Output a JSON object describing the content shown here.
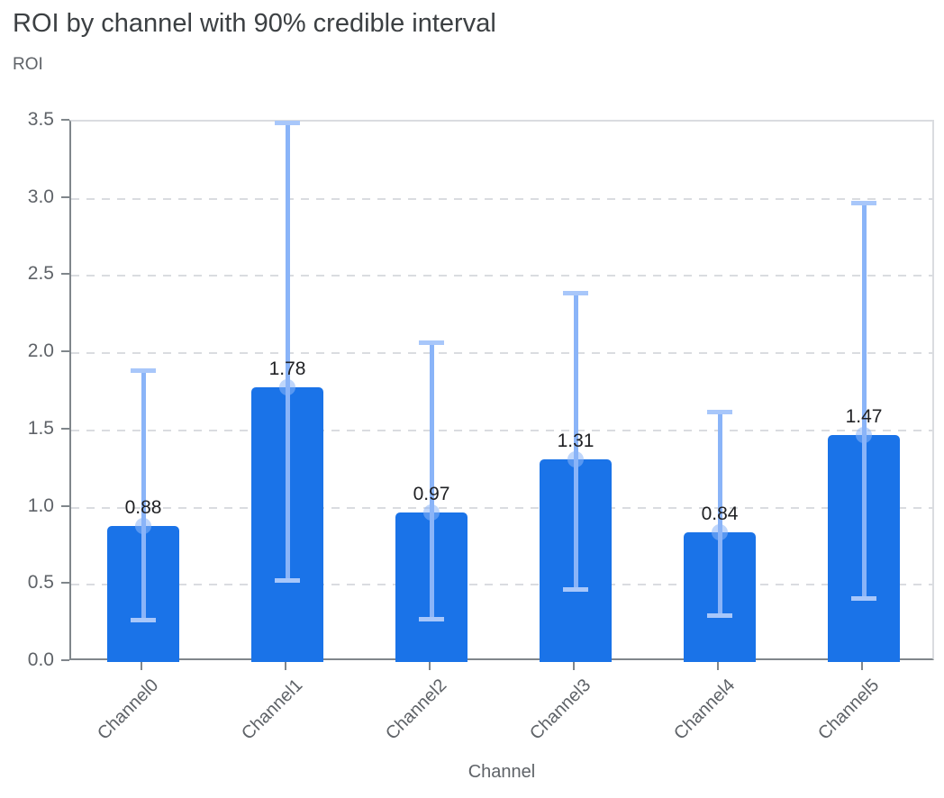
{
  "page": {
    "background_color": "#ffffff"
  },
  "chart_data": {
    "type": "bar",
    "title": "ROI by channel with 90% credible interval",
    "xlabel": "Channel",
    "ylabel": "ROI",
    "categories": [
      "Channel0",
      "Channel1",
      "Channel2",
      "Channel3",
      "Channel4",
      "Channel5"
    ],
    "series": [
      {
        "name": "ROI",
        "values": [
          0.88,
          1.78,
          0.97,
          1.31,
          0.84,
          1.47
        ],
        "value_labels": [
          "0.88",
          "1.78",
          "0.97",
          "1.31",
          "0.84",
          "1.47"
        ],
        "credible_interval_low": [
          0.27,
          0.53,
          0.28,
          0.47,
          0.3,
          0.41
        ],
        "credible_interval_high": [
          1.89,
          3.49,
          2.07,
          2.39,
          1.62,
          2.97
        ],
        "interval_label": "90% credible interval"
      }
    ],
    "ylim": [
      0,
      3.5
    ],
    "ytick_labels": [
      "0.0",
      "0.5",
      "1.0",
      "1.5",
      "2.0",
      "2.5",
      "3.0",
      "3.5"
    ],
    "grid": "horizontal-dashed",
    "legend": "none",
    "colors": {
      "bar": "#1a73e8",
      "error_bar": "#8ab4f8",
      "error_cap": "#a8c7fa",
      "error_dot": "rgba(138,180,248,0.55)",
      "gridline": "#dadce0",
      "axis_line": "#80868b",
      "tick_label": "#5f6368",
      "title": "#3c4043",
      "value_label": "#202124"
    }
  }
}
